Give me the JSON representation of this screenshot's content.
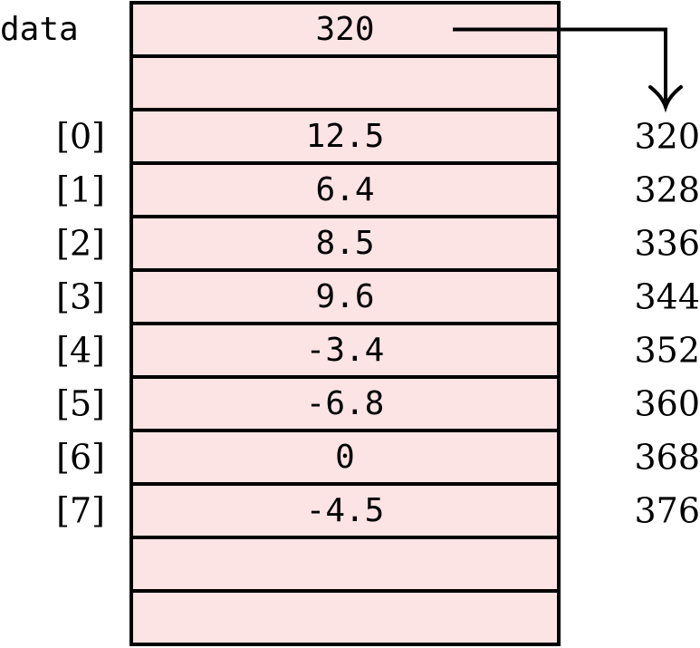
{
  "pointer": {
    "label": "data",
    "value": "320"
  },
  "cells": [
    {
      "index": "[0]",
      "value": "12.5",
      "address": "320"
    },
    {
      "index": "[1]",
      "value": "6.4",
      "address": "328"
    },
    {
      "index": "[2]",
      "value": "8.5",
      "address": "336"
    },
    {
      "index": "[3]",
      "value": "9.6",
      "address": "344"
    },
    {
      "index": "[4]",
      "value": "-3.4",
      "address": "352"
    },
    {
      "index": "[5]",
      "value": "-6.8",
      "address": "360"
    },
    {
      "index": "[6]",
      "value": "0",
      "address": "368"
    },
    {
      "index": "[7]",
      "value": "-4.5",
      "address": "376"
    }
  ],
  "colors": {
    "cell_fill": "#fde4e4",
    "stroke": "#000000",
    "text": "#000000"
  }
}
